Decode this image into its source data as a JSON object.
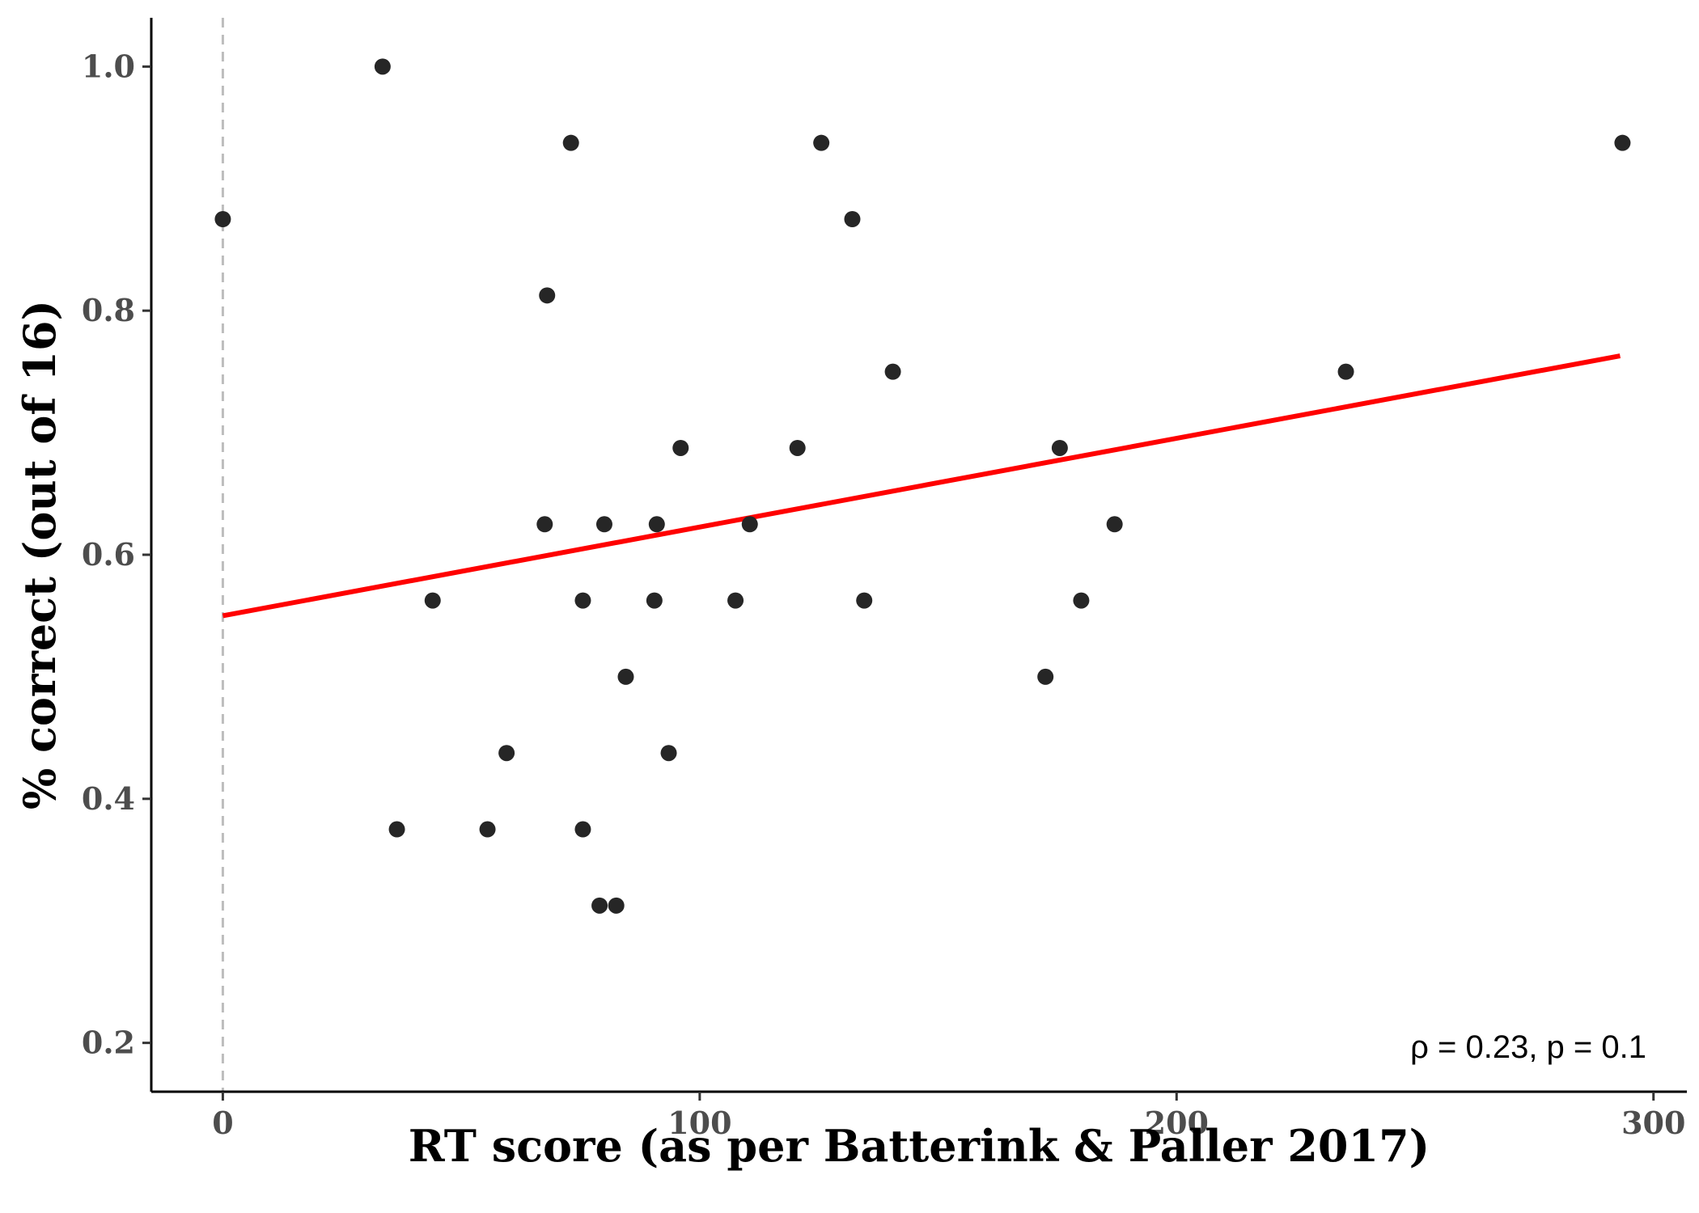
{
  "chart_data": {
    "type": "scatter",
    "title": "",
    "xlabel": "RT score (as per Batterink & Paller 2017)",
    "ylabel": "% correct (out of 16)",
    "xlim": [
      -15,
      307
    ],
    "ylim": [
      0.16,
      1.04
    ],
    "x_ticks": [
      0,
      100,
      200,
      300
    ],
    "y_ticks": [
      0.2,
      0.4,
      0.6,
      0.8,
      1.0
    ],
    "x_tick_labels": [
      "0",
      "100",
      "200",
      "300"
    ],
    "y_tick_labels": [
      "0.2",
      "0.4",
      "0.6",
      "0.8",
      "1.0"
    ],
    "grid": false,
    "reference_line": {
      "x": 0,
      "style": "dashed",
      "color": "#bdbdbd"
    },
    "regression_line": {
      "x": [
        0,
        293
      ],
      "y": [
        0.55,
        0.763
      ],
      "color": "#ff0000"
    },
    "point_color": "#262626",
    "annotation": "ρ = 0.23, p = 0.1",
    "points": [
      {
        "x": 0,
        "y": 0.875
      },
      {
        "x": 33.5,
        "y": 1.0
      },
      {
        "x": 36.5,
        "y": 0.375
      },
      {
        "x": 44,
        "y": 0.5625
      },
      {
        "x": 55.5,
        "y": 0.375
      },
      {
        "x": 59.5,
        "y": 0.4375
      },
      {
        "x": 67.5,
        "y": 0.625
      },
      {
        "x": 68,
        "y": 0.8125
      },
      {
        "x": 73,
        "y": 0.9375
      },
      {
        "x": 75.5,
        "y": 0.5625
      },
      {
        "x": 75.5,
        "y": 0.375
      },
      {
        "x": 79,
        "y": 0.3125
      },
      {
        "x": 80,
        "y": 0.625
      },
      {
        "x": 82.5,
        "y": 0.3125
      },
      {
        "x": 84.5,
        "y": 0.5
      },
      {
        "x": 90.5,
        "y": 0.5625
      },
      {
        "x": 91,
        "y": 0.625
      },
      {
        "x": 93.5,
        "y": 0.4375
      },
      {
        "x": 96,
        "y": 0.6875
      },
      {
        "x": 107.5,
        "y": 0.5625
      },
      {
        "x": 110.5,
        "y": 0.625
      },
      {
        "x": 120.5,
        "y": 0.6875
      },
      {
        "x": 125.5,
        "y": 0.9375
      },
      {
        "x": 132,
        "y": 0.875
      },
      {
        "x": 134.5,
        "y": 0.5625
      },
      {
        "x": 140.5,
        "y": 0.75
      },
      {
        "x": 172.5,
        "y": 0.5
      },
      {
        "x": 175.5,
        "y": 0.6875
      },
      {
        "x": 180,
        "y": 0.5625
      },
      {
        "x": 187,
        "y": 0.625
      },
      {
        "x": 235.5,
        "y": 0.75
      },
      {
        "x": 293.5,
        "y": 0.9375
      }
    ]
  }
}
